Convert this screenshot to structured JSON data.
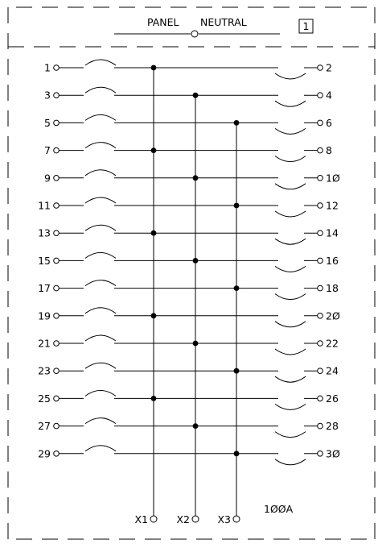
{
  "header": {
    "left_label": "PANEL",
    "right_label": "NEUTRAL",
    "sheet_tag": "1"
  },
  "rating": "1ØØA",
  "buses": [
    "X1",
    "X2",
    "X3"
  ],
  "circuits": [
    {
      "left": "1",
      "right": "2",
      "bus": 0
    },
    {
      "left": "3",
      "right": "4",
      "bus": 1
    },
    {
      "left": "5",
      "right": "6",
      "bus": 2
    },
    {
      "left": "7",
      "right": "8",
      "bus": 0
    },
    {
      "left": "9",
      "right": "1Ø",
      "bus": 1
    },
    {
      "left": "11",
      "right": "12",
      "bus": 2
    },
    {
      "left": "13",
      "right": "14",
      "bus": 0
    },
    {
      "left": "15",
      "right": "16",
      "bus": 1
    },
    {
      "left": "17",
      "right": "18",
      "bus": 2
    },
    {
      "left": "19",
      "right": "2Ø",
      "bus": 0
    },
    {
      "left": "21",
      "right": "22",
      "bus": 1
    },
    {
      "left": "23",
      "right": "24",
      "bus": 2
    },
    {
      "left": "25",
      "right": "26",
      "bus": 0
    },
    {
      "left": "27",
      "right": "28",
      "bus": 1
    },
    {
      "left": "29",
      "right": "3Ø",
      "bus": 2
    }
  ]
}
